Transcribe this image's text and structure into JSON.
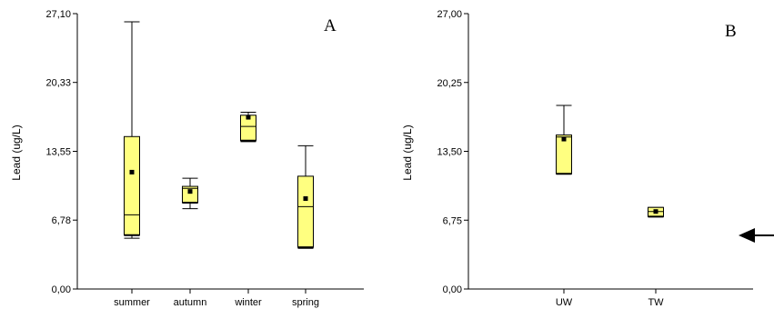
{
  "chart_data": [
    {
      "type": "boxplot",
      "panel_label": "A",
      "ylabel": "Lead (ug/L)",
      "ylim": [
        0,
        27.1
      ],
      "yticks": [
        "0,00",
        "6,78",
        "13,55",
        "20,33",
        "27,10"
      ],
      "ytick_values": [
        0,
        6.78,
        13.55,
        20.33,
        27.1
      ],
      "categories": [
        "summer",
        "autumn",
        "winter",
        "spring"
      ],
      "boxes": [
        {
          "whisker_low": 5.0,
          "q1": 5.3,
          "median": 7.3,
          "q3": 15.0,
          "whisker_high": 26.3,
          "mean": 11.5
        },
        {
          "whisker_low": 7.9,
          "q1": 8.5,
          "median": 9.9,
          "q3": 10.1,
          "whisker_high": 10.9,
          "mean": 9.6
        },
        {
          "whisker_low": 14.5,
          "q1": 14.6,
          "median": 16.0,
          "q3": 17.1,
          "whisker_high": 17.4,
          "mean": 16.9
        },
        {
          "whisker_low": 4.0,
          "q1": 4.1,
          "median": 8.1,
          "q3": 11.1,
          "whisker_high": 14.1,
          "mean": 8.9
        }
      ],
      "box_color": "#ffff80",
      "grid": false
    },
    {
      "type": "boxplot",
      "panel_label": "B",
      "ylabel": "Lead (ug/L)",
      "ylim": [
        0,
        27.0
      ],
      "yticks": [
        "0,00",
        "6,75",
        "13,50",
        "20,25",
        "27,00"
      ],
      "ytick_values": [
        0,
        6.75,
        13.5,
        20.25,
        27.0
      ],
      "categories": [
        "UW",
        "TW"
      ],
      "boxes": [
        {
          "whisker_low": 11.3,
          "q1": 11.3,
          "median": 14.9,
          "q3": 15.1,
          "whisker_high": 18.0,
          "mean": 14.7
        },
        {
          "whisker_low": 7.1,
          "q1": 7.1,
          "median": 7.6,
          "q3": 8.0,
          "whisker_high": 8.0,
          "mean": 7.6
        }
      ],
      "box_color": "#ffff80",
      "grid": false
    }
  ],
  "annotation": {
    "type": "arrow",
    "direction": "left",
    "icon": "left-arrow-icon"
  }
}
